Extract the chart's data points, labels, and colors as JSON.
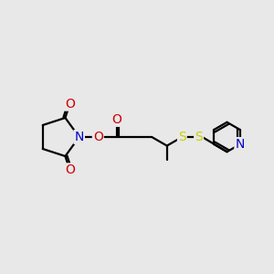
{
  "bg_color": "#e8e8e8",
  "atom_colors": {
    "O": "#cc0000",
    "N": "#0000cc",
    "S": "#cccc00",
    "C": "#000000"
  },
  "line_color": "#000000",
  "line_width": 1.6,
  "font_size_atom": 10,
  "figsize": [
    3.0,
    3.0
  ],
  "dpi": 100
}
